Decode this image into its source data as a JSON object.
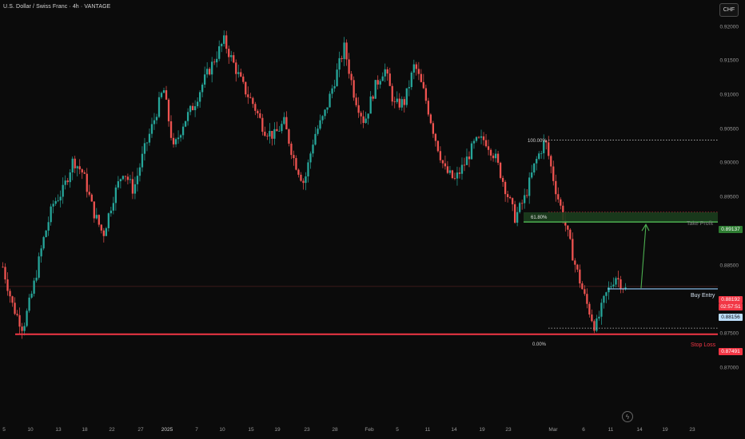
{
  "header": {
    "title": "U.S. Dollar / Swiss Franc · 4h · VANTAGE",
    "currency": "CHF"
  },
  "price_axis": {
    "labels": [
      "0.92000",
      "0.91500",
      "0.91000",
      "0.90500",
      "0.90000",
      "0.89500",
      "0.89000",
      "0.88500",
      "0.88000",
      "0.87500",
      "0.87000"
    ]
  },
  "time_axis": {
    "labels": [
      "5",
      "10",
      "13",
      "18",
      "22",
      "27",
      "2025",
      "7",
      "10",
      "15",
      "19",
      "23",
      "28",
      "Feb",
      "5",
      "11",
      "14",
      "19",
      "23",
      "Mar",
      "6",
      "11",
      "14",
      "19",
      "23"
    ]
  },
  "fib": {
    "level_100": "100.00%",
    "level_618": "61.80%",
    "level_0": "0.00%"
  },
  "annotations": {
    "take_profit": "Take Profit",
    "buy_entry": "Buy Entry",
    "stop_loss": "Stop Loss"
  },
  "badges": {
    "take_profit_price": "0.89137",
    "current_price": "0.88192",
    "countdown": "02:57:51",
    "entry_price": "0.88156",
    "stop_loss_price": "0.87491"
  },
  "colors": {
    "up": "#26a69a",
    "down": "#ef5350",
    "take_profit": "#4caf50",
    "stop_loss": "#f23645",
    "entry": "#90caf9",
    "arrow": "#4caf50"
  },
  "chart_data": {
    "type": "candlestick",
    "symbol": "USDCHF",
    "timeframe": "4h",
    "ylim": [
      0.8672,
      0.9212
    ],
    "levels": {
      "take_profit": 0.89137,
      "buy_entry": 0.88156,
      "stop_loss": 0.87491,
      "current": 0.88192,
      "fib_100": 0.9034,
      "fib_618": 0.8928,
      "fib_0": 0.8758
    },
    "path": [
      0.8848,
      0.879,
      0.8758,
      0.8815,
      0.8885,
      0.894,
      0.896,
      0.9005,
      0.8985,
      0.893,
      0.8895,
      0.895,
      0.899,
      0.896,
      0.9015,
      0.906,
      0.911,
      0.902,
      0.906,
      0.9085,
      0.912,
      0.915,
      0.918,
      0.9145,
      0.911,
      0.9085,
      0.905,
      0.904,
      0.906,
      0.9005,
      0.897,
      0.904,
      0.907,
      0.912,
      0.917,
      0.91,
      0.906,
      0.911,
      0.914,
      0.9085,
      0.909,
      0.9145,
      0.91,
      0.904,
      0.899,
      0.8975,
      0.9,
      0.903,
      0.9035,
      0.901,
      0.8965,
      0.892,
      0.895,
      0.9,
      0.9034,
      0.8965,
      0.891,
      0.885,
      0.88,
      0.8758,
      0.8805,
      0.8835,
      0.8815
    ]
  }
}
